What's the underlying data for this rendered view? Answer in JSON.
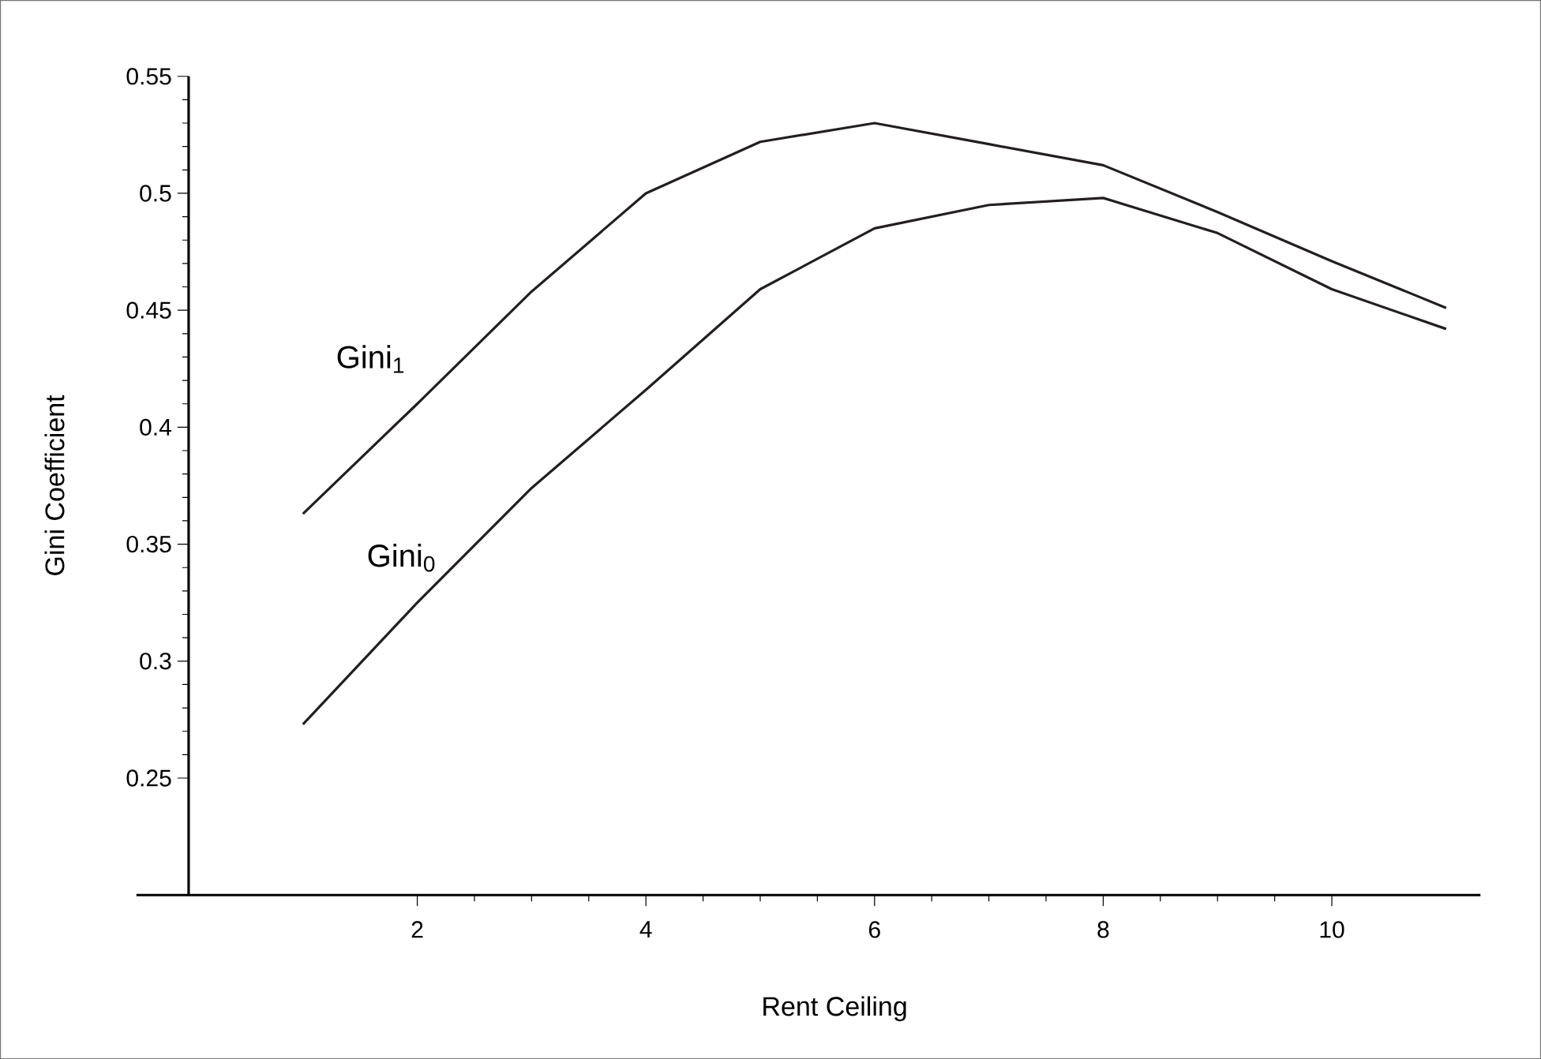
{
  "chart_data": {
    "type": "line",
    "xlabel": "Rent Ceiling",
    "ylabel": "Gini Coefficient",
    "x": [
      1,
      2,
      3,
      4,
      5,
      6,
      7,
      8,
      9,
      10,
      11
    ],
    "series": [
      {
        "name": "Gini$_{1}$",
        "color": "#231f20",
        "values": [
          0.363,
          0.41,
          0.458,
          0.5,
          0.522,
          0.53,
          0.521,
          0.512,
          0.492,
          0.471,
          0.451
        ]
      },
      {
        "name": "Gini$_{0}$",
        "color": "#231f20",
        "values": [
          0.273,
          0.325,
          0.374,
          0.416,
          0.459,
          0.485,
          0.495,
          0.498,
          0.483,
          0.459,
          0.442
        ]
      }
    ],
    "xlim": [
      0,
      11.3
    ],
    "ylim": [
      0.2,
      0.55
    ],
    "xticks": [
      2,
      4,
      6,
      8,
      10
    ],
    "yticks": [
      0.25,
      0.3,
      0.35,
      0.4,
      0.45,
      0.5,
      0.55
    ],
    "grid": false,
    "legend": false,
    "marker": "none",
    "line_style": "solid"
  }
}
